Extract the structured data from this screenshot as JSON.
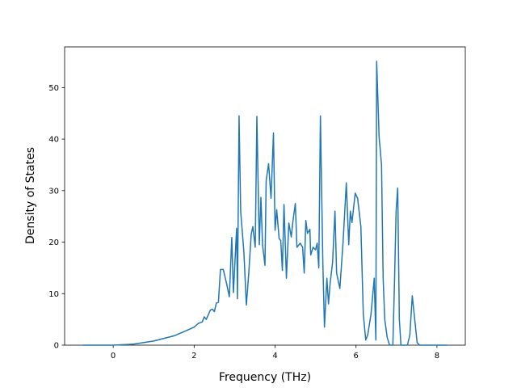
{
  "chart_data": {
    "type": "line",
    "xlabel": "Frequency (THz)",
    "ylabel": "Density of States",
    "x": [
      -0.75,
      0,
      0.5,
      1.0,
      1.5,
      1.8,
      2.0,
      2.1,
      2.2,
      2.25,
      2.3,
      2.4,
      2.45,
      2.5,
      2.55,
      2.6,
      2.65,
      2.72,
      2.8,
      2.87,
      2.93,
      2.97,
      3.05,
      3.07,
      3.11,
      3.15,
      3.23,
      3.29,
      3.35,
      3.41,
      3.45,
      3.51,
      3.55,
      3.61,
      3.65,
      3.69,
      3.75,
      3.78,
      3.84,
      3.9,
      3.96,
      4.0,
      4.04,
      4.1,
      4.14,
      4.18,
      4.22,
      4.28,
      4.34,
      4.4,
      4.44,
      4.5,
      4.54,
      4.62,
      4.68,
      4.72,
      4.76,
      4.8,
      4.86,
      4.88,
      4.94,
      5.0,
      5.04,
      5.08,
      5.12,
      5.18,
      5.22,
      5.28,
      5.32,
      5.36,
      5.42,
      5.48,
      5.52,
      5.6,
      5.68,
      5.76,
      5.82,
      5.86,
      5.9,
      5.98,
      6.04,
      6.12,
      6.18,
      6.24,
      6.29,
      6.37,
      6.45,
      6.49,
      6.51,
      6.57,
      6.63,
      6.67,
      6.71,
      6.77,
      6.83,
      6.91,
      6.95,
      6.99,
      7.03,
      7.07,
      7.11,
      7.27,
      7.33,
      7.39,
      7.45,
      7.51,
      7.57,
      8.25
    ],
    "series": [
      {
        "color": "#1f77b4",
        "values": [
          0,
          0,
          0.2,
          0.8,
          1.8,
          2.8,
          3.5,
          4.2,
          4.5,
          5.5,
          5.0,
          6.8,
          7.0,
          6.5,
          8.2,
          8.3,
          14.7,
          14.7,
          12,
          9.4,
          20.9,
          10.2,
          22.7,
          9,
          44.5,
          26,
          18,
          7.8,
          14,
          21.5,
          23,
          19,
          44.4,
          19.5,
          28.7,
          19.5,
          15.5,
          32,
          35.2,
          28.5,
          41.2,
          22.3,
          26.3,
          20.7,
          20.3,
          14.5,
          27.3,
          13,
          23.7,
          21,
          24,
          27.5,
          19,
          19.8,
          19,
          14,
          24.2,
          21.7,
          22.5,
          17.5,
          19,
          18.5,
          19.8,
          15,
          44.5,
          16,
          3.5,
          13,
          8,
          12,
          16,
          26,
          14,
          11,
          20,
          31.5,
          19.5,
          26,
          23.8,
          29.5,
          28.5,
          23,
          6,
          1,
          2,
          6,
          13,
          1,
          55.1,
          40.5,
          35,
          13,
          5,
          1.5,
          0,
          0,
          12,
          26,
          30.5,
          5,
          0,
          0,
          2,
          9.6,
          5,
          0.5,
          0,
          0
        ]
      }
    ],
    "xlim": [
      -1.2,
      8.7
    ],
    "ylim": [
      0,
      57.9
    ],
    "xticks": [
      0,
      2,
      4,
      6,
      8
    ],
    "yticks": [
      0,
      10,
      20,
      30,
      40,
      50
    ]
  }
}
